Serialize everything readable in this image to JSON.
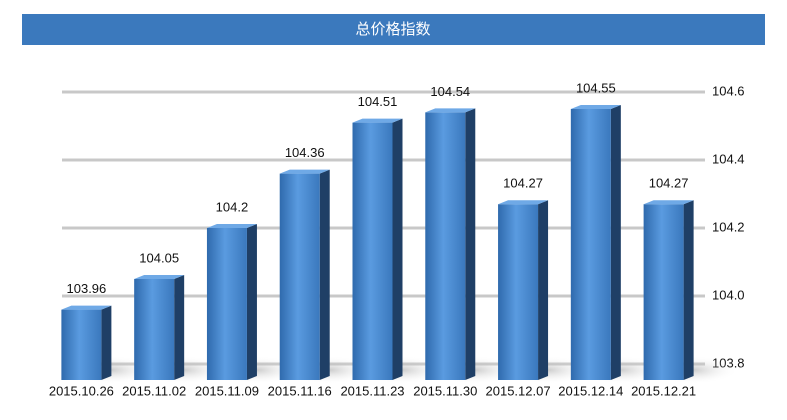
{
  "chart_data": {
    "type": "bar3d",
    "title": "总价格指数",
    "categories": [
      "2015.10.26",
      "2015.11.02",
      "2015.11.09",
      "2015.11.16",
      "2015.11.23",
      "2015.11.30",
      "2015.12.07",
      "2015.12.14",
      "2015.12.21"
    ],
    "values": [
      103.96,
      104.05,
      104.2,
      104.36,
      104.51,
      104.54,
      104.27,
      104.55,
      104.27
    ],
    "color": "#3f7fc4",
    "ylim": [
      103.8,
      104.6
    ],
    "yticks": [
      103.8,
      {
        "value": 104,
        "label": "104.0"
      },
      104.2,
      104.4,
      104.6
    ],
    "grid": true
  }
}
